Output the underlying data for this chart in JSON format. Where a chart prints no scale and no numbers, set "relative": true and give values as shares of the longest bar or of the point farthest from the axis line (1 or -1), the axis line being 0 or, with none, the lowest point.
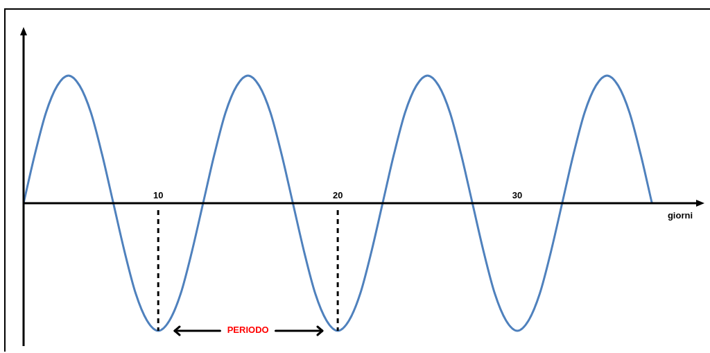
{
  "chart_data": {
    "type": "line",
    "relative": true,
    "xlabel": "giorni",
    "xlim": [
      2.5,
      40
    ],
    "xticks": [
      10,
      20,
      30
    ],
    "grid": false,
    "legend": false,
    "marker": "none",
    "line_style": "solid",
    "series": [
      {
        "color": "#4f81bd",
        "x": [
          2.5,
          3.125,
          3.75,
          4.375,
          5,
          5.625,
          6.25,
          6.875,
          7.5,
          8.125,
          8.75,
          9.375,
          10,
          10.625,
          11.25,
          11.875,
          12.5,
          13.125,
          13.75,
          14.375,
          15,
          15.625,
          16.25,
          16.875,
          17.5,
          18.125,
          18.75,
          19.375,
          20,
          20.625,
          21.25,
          21.875,
          22.5,
          23.125,
          23.75,
          24.375,
          25,
          25.625,
          26.25,
          26.875,
          27.5,
          28.125,
          28.75,
          29.375,
          30,
          30.625,
          31.25,
          31.875,
          32.5,
          33.125,
          33.75,
          34.375,
          35,
          35.625,
          36.25,
          36.875,
          37.5
        ],
        "values": [
          0,
          0.38,
          0.71,
          0.92,
          1,
          0.92,
          0.71,
          0.38,
          0,
          -0.38,
          -0.71,
          -0.92,
          -1,
          -0.92,
          -0.71,
          -0.38,
          0,
          0.38,
          0.71,
          0.92,
          1,
          0.92,
          0.71,
          0.38,
          0,
          -0.38,
          -0.71,
          -0.92,
          -1,
          -0.92,
          -0.71,
          -0.38,
          0,
          0.38,
          0.71,
          0.92,
          1,
          0.92,
          0.71,
          0.38,
          0,
          -0.38,
          -0.71,
          -0.92,
          -1,
          -0.92,
          -0.71,
          -0.38,
          0,
          0.38,
          0.71,
          0.92,
          1,
          0.92,
          0.71,
          0.38,
          0
        ]
      }
    ],
    "ref_lines": [
      {
        "axis": "x",
        "value": 10,
        "line_style": "dashed",
        "color": "#000000"
      },
      {
        "axis": "x",
        "value": 20,
        "line_style": "dashed",
        "color": "#000000"
      }
    ],
    "annotations": [
      "PERIODO"
    ]
  }
}
